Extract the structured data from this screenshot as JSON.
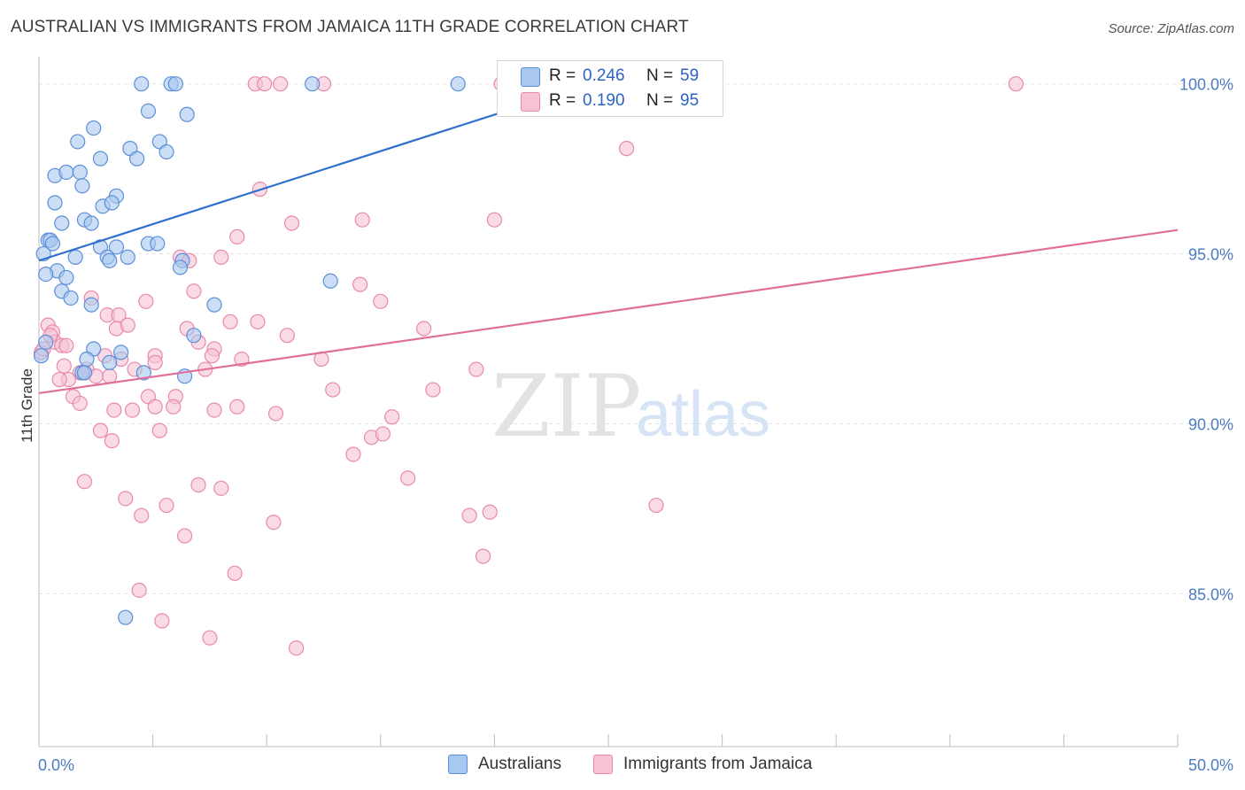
{
  "title": "AUSTRALIAN VS IMMIGRANTS FROM JAMAICA 11TH GRADE CORRELATION CHART",
  "source": "Source: ZipAtlas.com",
  "watermark": {
    "zip": "ZIP",
    "atlas": "atlas"
  },
  "colors": {
    "blue_fill": "#a9c8f0",
    "blue_stroke": "#5b8fd8",
    "blue_line": "#2f6fce",
    "pink_fill": "#f7c3d3",
    "pink_stroke": "#e88aa8",
    "pink_line": "#e0709a"
  },
  "legend_top": {
    "rows": [
      {
        "r_label": "R =",
        "r_value": "0.246",
        "n_label": "N =",
        "n_value": "59",
        "series": "australians"
      },
      {
        "r_label": "R =",
        "r_value": "0.190",
        "n_label": "N =",
        "n_value": "95",
        "series": "jamaica"
      }
    ]
  },
  "legend_bottom": {
    "australians": "Australians",
    "jamaica": "Immigrants from Jamaica"
  },
  "chart_data": {
    "type": "scatter",
    "title": "AUSTRALIAN VS IMMIGRANTS FROM JAMAICA 11TH GRADE CORRELATION CHART",
    "xlabel": "",
    "ylabel": "11th Grade",
    "xlim": [
      0,
      50
    ],
    "ylim": [
      80.5,
      100.8
    ],
    "x_tick_labels": [
      "0.0%",
      "50.0%"
    ],
    "y_ticks": [
      {
        "value": 85,
        "label": "85.0%"
      },
      {
        "value": 90,
        "label": "90.0%"
      },
      {
        "value": 95,
        "label": "95.0%"
      },
      {
        "value": 100,
        "label": "100.0%"
      }
    ],
    "grid": true,
    "series": [
      {
        "name": "Australians",
        "r": 0.246,
        "n": 59,
        "trend": {
          "x0": 0,
          "y0": 94.8,
          "x1": 20.5,
          "y1": 99.2
        },
        "points": [
          [
            4.5,
            100
          ],
          [
            5.8,
            100
          ],
          [
            6.0,
            100
          ],
          [
            12.0,
            100
          ],
          [
            18.4,
            100
          ],
          [
            4.8,
            99.2
          ],
          [
            6.5,
            99.1
          ],
          [
            2.4,
            98.7
          ],
          [
            1.7,
            98.3
          ],
          [
            4.0,
            98.1
          ],
          [
            5.3,
            98.3
          ],
          [
            5.6,
            98.0
          ],
          [
            2.7,
            97.8
          ],
          [
            4.3,
            97.8
          ],
          [
            0.7,
            97.3
          ],
          [
            1.2,
            97.4
          ],
          [
            1.8,
            97.4
          ],
          [
            1.9,
            97.0
          ],
          [
            3.4,
            96.7
          ],
          [
            0.7,
            96.5
          ],
          [
            2.8,
            96.4
          ],
          [
            3.2,
            96.5
          ],
          [
            2.0,
            96.0
          ],
          [
            2.3,
            95.9
          ],
          [
            1.0,
            95.9
          ],
          [
            0.4,
            95.4
          ],
          [
            0.5,
            95.4
          ],
          [
            0.6,
            95.3
          ],
          [
            2.7,
            95.2
          ],
          [
            3.4,
            95.2
          ],
          [
            4.8,
            95.3
          ],
          [
            5.2,
            95.3
          ],
          [
            0.2,
            95.0
          ],
          [
            1.6,
            94.9
          ],
          [
            3.0,
            94.9
          ],
          [
            3.9,
            94.9
          ],
          [
            3.1,
            94.8
          ],
          [
            6.3,
            94.8
          ],
          [
            6.2,
            94.6
          ],
          [
            0.8,
            94.5
          ],
          [
            0.3,
            94.4
          ],
          [
            1.2,
            94.3
          ],
          [
            12.8,
            94.2
          ],
          [
            1.0,
            93.9
          ],
          [
            1.4,
            93.7
          ],
          [
            2.3,
            93.5
          ],
          [
            7.7,
            93.5
          ],
          [
            6.8,
            92.6
          ],
          [
            0.3,
            92.4
          ],
          [
            2.4,
            92.2
          ],
          [
            3.6,
            92.1
          ],
          [
            2.1,
            91.9
          ],
          [
            3.1,
            91.8
          ],
          [
            1.9,
            91.5
          ],
          [
            2.0,
            91.5
          ],
          [
            4.6,
            91.5
          ],
          [
            6.4,
            91.4
          ],
          [
            0.1,
            92.0
          ],
          [
            3.8,
            84.3
          ]
        ]
      },
      {
        "name": "Immigrants from Jamaica",
        "r": 0.19,
        "n": 95,
        "trend": {
          "x0": 0,
          "y0": 90.9,
          "x1": 50,
          "y1": 95.7
        },
        "points": [
          [
            9.5,
            100
          ],
          [
            9.9,
            100
          ],
          [
            10.6,
            100
          ],
          [
            12.5,
            100
          ],
          [
            20.3,
            100
          ],
          [
            42.9,
            100
          ],
          [
            25.8,
            98.1
          ],
          [
            9.7,
            96.9
          ],
          [
            11.1,
            95.9
          ],
          [
            14.2,
            96.0
          ],
          [
            20.0,
            96.0
          ],
          [
            8.7,
            95.5
          ],
          [
            6.2,
            94.9
          ],
          [
            6.6,
            94.8
          ],
          [
            8.0,
            94.9
          ],
          [
            14.1,
            94.1
          ],
          [
            6.8,
            93.9
          ],
          [
            15.0,
            93.6
          ],
          [
            2.3,
            93.7
          ],
          [
            4.7,
            93.6
          ],
          [
            3.0,
            93.2
          ],
          [
            3.5,
            93.2
          ],
          [
            8.4,
            93.0
          ],
          [
            9.6,
            93.0
          ],
          [
            0.4,
            92.9
          ],
          [
            0.6,
            92.7
          ],
          [
            3.4,
            92.8
          ],
          [
            3.9,
            92.9
          ],
          [
            6.5,
            92.8
          ],
          [
            10.9,
            92.6
          ],
          [
            16.9,
            92.8
          ],
          [
            0.7,
            92.4
          ],
          [
            1.0,
            92.3
          ],
          [
            7.0,
            92.4
          ],
          [
            7.7,
            92.2
          ],
          [
            5.1,
            92.0
          ],
          [
            2.9,
            92.0
          ],
          [
            3.6,
            91.9
          ],
          [
            7.6,
            92.0
          ],
          [
            8.9,
            91.9
          ],
          [
            12.4,
            91.9
          ],
          [
            1.1,
            91.7
          ],
          [
            1.8,
            91.5
          ],
          [
            4.2,
            91.6
          ],
          [
            5.1,
            91.8
          ],
          [
            7.3,
            91.6
          ],
          [
            2.1,
            91.6
          ],
          [
            2.5,
            91.4
          ],
          [
            1.3,
            91.3
          ],
          [
            3.1,
            91.4
          ],
          [
            12.9,
            91.0
          ],
          [
            17.3,
            91.0
          ],
          [
            19.2,
            91.6
          ],
          [
            1.5,
            90.8
          ],
          [
            1.8,
            90.6
          ],
          [
            4.8,
            90.8
          ],
          [
            6.0,
            90.8
          ],
          [
            3.3,
            90.4
          ],
          [
            4.1,
            90.4
          ],
          [
            5.1,
            90.5
          ],
          [
            5.9,
            90.5
          ],
          [
            7.7,
            90.4
          ],
          [
            8.7,
            90.5
          ],
          [
            10.4,
            90.3
          ],
          [
            15.5,
            90.2
          ],
          [
            2.7,
            89.8
          ],
          [
            5.3,
            89.8
          ],
          [
            14.6,
            89.6
          ],
          [
            15.1,
            89.7
          ],
          [
            3.2,
            89.5
          ],
          [
            13.8,
            89.1
          ],
          [
            16.2,
            88.4
          ],
          [
            2.0,
            88.3
          ],
          [
            7.0,
            88.2
          ],
          [
            8.0,
            88.1
          ],
          [
            3.8,
            87.8
          ],
          [
            5.6,
            87.6
          ],
          [
            4.5,
            87.3
          ],
          [
            18.9,
            87.3
          ],
          [
            19.8,
            87.4
          ],
          [
            27.1,
            87.6
          ],
          [
            10.3,
            87.1
          ],
          [
            6.4,
            86.7
          ],
          [
            19.5,
            86.1
          ],
          [
            8.6,
            85.6
          ],
          [
            4.4,
            85.1
          ],
          [
            5.4,
            84.2
          ],
          [
            7.5,
            83.7
          ],
          [
            11.3,
            83.4
          ],
          [
            0.1,
            92.1
          ],
          [
            0.5,
            92.6
          ],
          [
            1.2,
            92.3
          ],
          [
            0.2,
            92.2
          ],
          [
            0.9,
            91.3
          ],
          [
            2.0,
            91.5
          ]
        ]
      }
    ]
  }
}
